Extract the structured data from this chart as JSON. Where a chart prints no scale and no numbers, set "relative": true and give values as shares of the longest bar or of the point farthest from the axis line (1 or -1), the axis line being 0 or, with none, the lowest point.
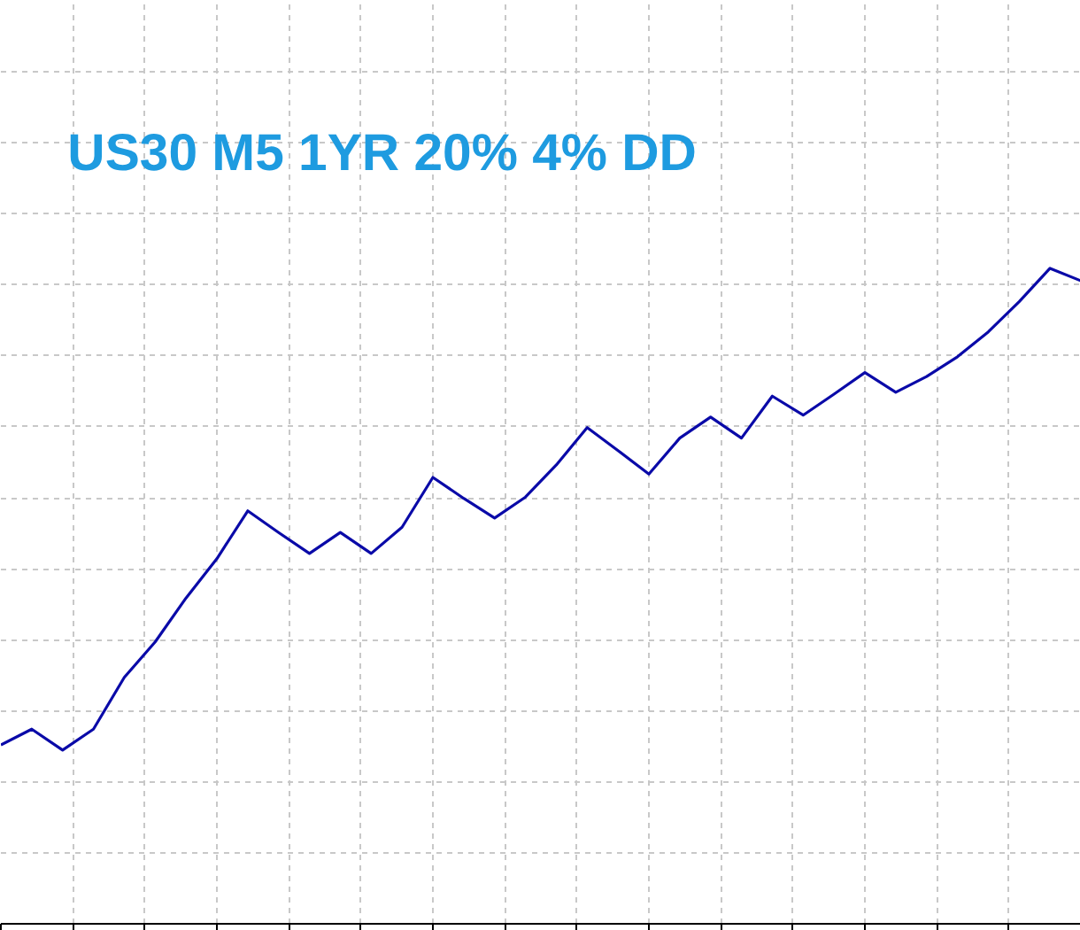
{
  "chart_data": {
    "type": "line",
    "title": "US30 M5 1YR 20% 4% DD",
    "relative": true,
    "grid": true,
    "categories": [
      null,
      null,
      null,
      null,
      null,
      null,
      null,
      null,
      null,
      null,
      null,
      null,
      null,
      null,
      null,
      null,
      null,
      null,
      null,
      null,
      null,
      null,
      null,
      null,
      null,
      null,
      null,
      null,
      null,
      null,
      null,
      null,
      null,
      null,
      null,
      null
    ],
    "series": [
      {
        "color": "#0a0aa8",
        "values": [
          0.273,
          0.297,
          0.265,
          0.297,
          0.376,
          0.43,
          0.497,
          0.557,
          0.63,
          0.597,
          0.565,
          0.597,
          0.565,
          0.605,
          0.681,
          0.649,
          0.619,
          0.651,
          0.7,
          0.757,
          0.722,
          0.686,
          0.741,
          0.773,
          0.741,
          0.805,
          0.776,
          0.808,
          0.841,
          0.811,
          0.835,
          0.865,
          0.903,
          0.949,
          1.0,
          0.981
        ]
      }
    ]
  }
}
